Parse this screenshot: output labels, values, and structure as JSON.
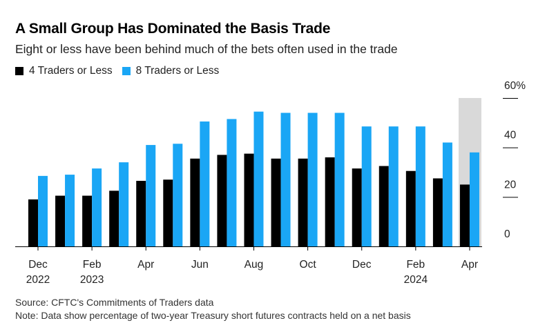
{
  "title": "A Small Group Has Dominated the Basis Trade",
  "subtitle": "Eight or less have been behind much of the bets often used in the trade",
  "legend": [
    {
      "label": "4 Traders or Less",
      "color": "#000000"
    },
    {
      "label": "8 Traders or Less",
      "color": "#1aa6f5"
    }
  ],
  "source": "Source: CFTC's Commitments of Traders data",
  "note": "Note: Data show percentage of two-year Treasury short futures contracts held on a net basis",
  "chart_data": {
    "type": "bar",
    "title": "A Small Group Has Dominated the Basis Trade",
    "subtitle": "Eight or less have been behind much of the bets often used in the trade",
    "categories": [
      "Dec 2022",
      "Jan 2023",
      "Feb 2023",
      "Mar 2023",
      "Apr 2023",
      "May 2023",
      "Jun 2023",
      "Jul 2023",
      "Aug 2023",
      "Sep 2023",
      "Oct 2023",
      "Nov 2023",
      "Dec 2023",
      "Jan 2024",
      "Feb 2024",
      "Mar 2024",
      "Apr 2024"
    ],
    "series": [
      {
        "name": "4 Traders or Less",
        "color": "#000000",
        "values": [
          19,
          20.5,
          20.5,
          22.5,
          26.5,
          27,
          35.5,
          37,
          37.5,
          35.5,
          35.5,
          36,
          31.5,
          32.5,
          30.5,
          27.5,
          25
        ]
      },
      {
        "name": "8 Traders or Less",
        "color": "#1aa6f5",
        "values": [
          28.5,
          29,
          31.5,
          34,
          41,
          41.5,
          50.5,
          51.5,
          54.5,
          54,
          54,
          54,
          48.5,
          48.5,
          48.5,
          42,
          38
        ]
      }
    ],
    "x_tick_labels": [
      {
        "label": "Dec",
        "sub": "2022",
        "index": 0
      },
      {
        "label": "Feb",
        "sub": "2023",
        "index": 2
      },
      {
        "label": "Apr",
        "sub": "",
        "index": 4
      },
      {
        "label": "Jun",
        "sub": "",
        "index": 6
      },
      {
        "label": "Aug",
        "sub": "",
        "index": 8
      },
      {
        "label": "Oct",
        "sub": "",
        "index": 10
      },
      {
        "label": "Dec",
        "sub": "",
        "index": 12
      },
      {
        "label": "Feb",
        "sub": "2024",
        "index": 14
      },
      {
        "label": "Apr",
        "sub": "",
        "index": 16
      }
    ],
    "y_ticks": [
      "0",
      "20",
      "40",
      "60%"
    ],
    "y_tick_values": [
      0,
      20,
      40,
      60
    ],
    "ylim": [
      0,
      60
    ],
    "highlight_range": {
      "from_index": 16,
      "to_index": 16,
      "color": "#d9d9d9"
    },
    "axis_position": "right",
    "legend_position": "top-left",
    "grid": false
  }
}
